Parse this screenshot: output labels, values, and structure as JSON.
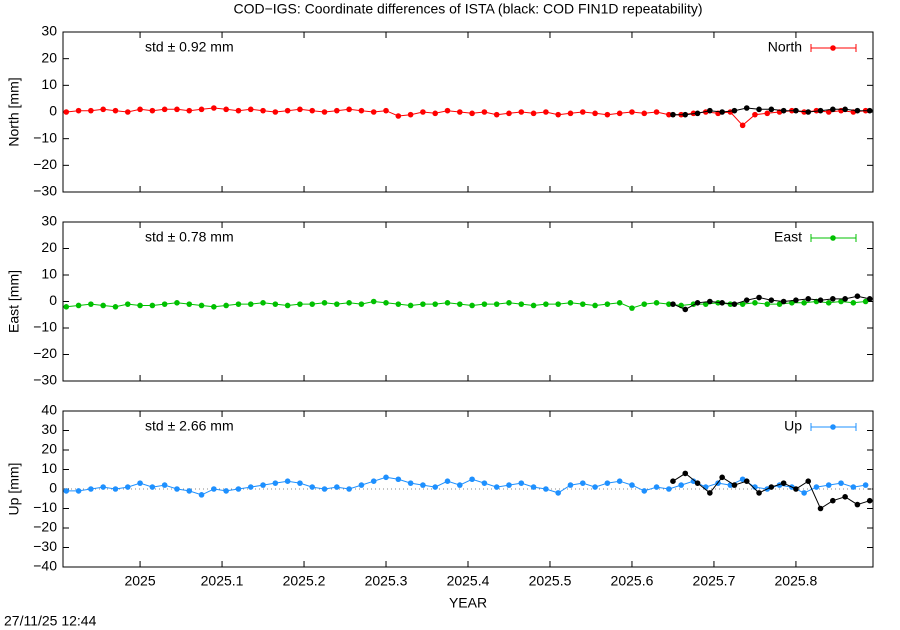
{
  "title": "COD−IGS: Coordinate differences of ISTA (black: COD FIN1D repeatability)",
  "timestamp": "27/11/25 12:44",
  "chart_data": [
    {
      "type": "scatter",
      "ylabel": "North [mm]",
      "annotation": "std ± 0.92 mm",
      "xlim": [
        2024.906,
        2025.894
      ],
      "xticks": [
        2025,
        2025.1,
        2025.2,
        2025.3,
        2025.4,
        2025.5,
        2025.6,
        2025.7,
        2025.8
      ],
      "show_xtick_labels": false,
      "ylim": [
        -30,
        30
      ],
      "yticks": [
        {
          "value": -30,
          "label": "−30"
        },
        {
          "value": -20,
          "label": "−20"
        },
        {
          "value": -10,
          "label": "−10"
        },
        0,
        10,
        20,
        30
      ],
      "zero_line": false,
      "legend": "upper right",
      "series": [
        {
          "name": "North",
          "color": "#ff0000",
          "x": [
            2024.91,
            2024.925,
            2024.94,
            2024.955,
            2024.97,
            2024.985,
            2025.0,
            2025.015,
            2025.03,
            2025.045,
            2025.06,
            2025.075,
            2025.09,
            2025.105,
            2025.12,
            2025.135,
            2025.15,
            2025.165,
            2025.18,
            2025.195,
            2025.21,
            2025.225,
            2025.24,
            2025.255,
            2025.27,
            2025.285,
            2025.3,
            2025.315,
            2025.33,
            2025.345,
            2025.36,
            2025.375,
            2025.39,
            2025.405,
            2025.42,
            2025.435,
            2025.45,
            2025.465,
            2025.48,
            2025.495,
            2025.51,
            2025.525,
            2025.54,
            2025.555,
            2025.57,
            2025.585,
            2025.6,
            2025.615,
            2025.63,
            2025.645,
            2025.66,
            2025.675,
            2025.69,
            2025.705,
            2025.72,
            2025.735,
            2025.75,
            2025.765,
            2025.78,
            2025.795,
            2025.81,
            2025.825,
            2025.84,
            2025.855,
            2025.87,
            2025.885
          ],
          "values": [
            0,
            0.5,
            0.5,
            1,
            0.5,
            0,
            1,
            0.5,
            1,
            1,
            0.5,
            1,
            1.5,
            1,
            0.5,
            1,
            0.5,
            0,
            0.5,
            1,
            0.5,
            0,
            0.5,
            1,
            0.5,
            0,
            0.5,
            -1.5,
            -1,
            0,
            -0.5,
            0.5,
            0,
            -0.5,
            0,
            -1,
            -0.5,
            0,
            -0.5,
            0,
            -1,
            -0.5,
            0,
            -0.5,
            -1,
            -0.5,
            0,
            -0.5,
            0,
            -1,
            -1,
            -0.5,
            0,
            -0.5,
            0,
            -5,
            -1,
            -0.5,
            0,
            0.5,
            0,
            0.5,
            0,
            0.5,
            0,
            0.5
          ]
        },
        {
          "color": "#000000",
          "x": [
            2025.65,
            2025.665,
            2025.68,
            2025.695,
            2025.71,
            2025.725,
            2025.74,
            2025.755,
            2025.77,
            2025.785,
            2025.8,
            2025.815,
            2025.83,
            2025.845,
            2025.86,
            2025.875,
            2025.89
          ],
          "values": [
            -1,
            -1,
            -0.5,
            0.5,
            0,
            0.5,
            1.5,
            1,
            1,
            0.5,
            0.5,
            0,
            0.5,
            1,
            1,
            0.5,
            0.5
          ]
        }
      ]
    },
    {
      "type": "scatter",
      "ylabel": "East [mm]",
      "annotation": "std ± 0.78 mm",
      "xlim": [
        2024.906,
        2025.894
      ],
      "xticks": [
        2025,
        2025.1,
        2025.2,
        2025.3,
        2025.4,
        2025.5,
        2025.6,
        2025.7,
        2025.8
      ],
      "show_xtick_labels": false,
      "ylim": [
        -30,
        30
      ],
      "yticks": [
        {
          "value": -30,
          "label": "−30"
        },
        {
          "value": -20,
          "label": "−20"
        },
        {
          "value": -10,
          "label": "−10"
        },
        0,
        10,
        20,
        30
      ],
      "zero_line": false,
      "legend": "upper right",
      "series": [
        {
          "name": "East",
          "color": "#00c000",
          "x": [
            2024.91,
            2024.925,
            2024.94,
            2024.955,
            2024.97,
            2024.985,
            2025.0,
            2025.015,
            2025.03,
            2025.045,
            2025.06,
            2025.075,
            2025.09,
            2025.105,
            2025.12,
            2025.135,
            2025.15,
            2025.165,
            2025.18,
            2025.195,
            2025.21,
            2025.225,
            2025.24,
            2025.255,
            2025.27,
            2025.285,
            2025.3,
            2025.315,
            2025.33,
            2025.345,
            2025.36,
            2025.375,
            2025.39,
            2025.405,
            2025.42,
            2025.435,
            2025.45,
            2025.465,
            2025.48,
            2025.495,
            2025.51,
            2025.525,
            2025.54,
            2025.555,
            2025.57,
            2025.585,
            2025.6,
            2025.615,
            2025.63,
            2025.645,
            2025.66,
            2025.675,
            2025.69,
            2025.705,
            2025.72,
            2025.735,
            2025.75,
            2025.765,
            2025.78,
            2025.795,
            2025.81,
            2025.825,
            2025.84,
            2025.855,
            2025.87,
            2025.885
          ],
          "values": [
            -2,
            -1.5,
            -1,
            -1.5,
            -2,
            -1,
            -1.5,
            -1.5,
            -1,
            -0.5,
            -1,
            -1.5,
            -2,
            -1.5,
            -1,
            -1,
            -0.5,
            -1,
            -1.5,
            -1,
            -1,
            -0.5,
            -1,
            -0.5,
            -1,
            0,
            -0.5,
            -1,
            -1.5,
            -1,
            -1,
            -0.5,
            -1,
            -1.5,
            -1,
            -1,
            -0.5,
            -1,
            -1.5,
            -1,
            -1,
            -0.5,
            -1,
            -1.5,
            -1,
            -0.5,
            -2.5,
            -1,
            -0.5,
            -1,
            -1.5,
            -1,
            -1,
            -0.5,
            -1,
            -1,
            -0.5,
            -1,
            -1,
            -0.5,
            -0.5,
            0,
            -0.5,
            0,
            -0.5,
            0
          ]
        },
        {
          "color": "#000000",
          "x": [
            2025.65,
            2025.665,
            2025.68,
            2025.695,
            2025.71,
            2025.725,
            2025.74,
            2025.755,
            2025.77,
            2025.785,
            2025.8,
            2025.815,
            2025.83,
            2025.845,
            2025.86,
            2025.875,
            2025.89
          ],
          "values": [
            -1,
            -3,
            -0.5,
            0,
            -0.5,
            -1,
            0.5,
            1.5,
            0.5,
            0,
            0.5,
            1,
            0.5,
            1,
            1,
            2,
            1
          ]
        }
      ]
    },
    {
      "type": "scatter",
      "ylabel": "Up [mm]",
      "annotation": "std ± 2.66 mm",
      "xlabel": "YEAR",
      "xlim": [
        2024.906,
        2025.894
      ],
      "xticks": [
        2025,
        2025.1,
        2025.2,
        2025.3,
        2025.4,
        2025.5,
        2025.6,
        2025.7,
        2025.8
      ],
      "show_xtick_labels": true,
      "ylim": [
        -40,
        40
      ],
      "yticks": [
        {
          "value": -40,
          "label": "−40"
        },
        {
          "value": -30,
          "label": "−30"
        },
        {
          "value": -20,
          "label": "−20"
        },
        {
          "value": -10,
          "label": "−10"
        },
        0,
        10,
        20,
        30,
        40
      ],
      "zero_line": true,
      "legend": "upper right",
      "series": [
        {
          "name": "Up",
          "color": "#1e90ff",
          "x": [
            2024.91,
            2024.925,
            2024.94,
            2024.955,
            2024.97,
            2024.985,
            2025.0,
            2025.015,
            2025.03,
            2025.045,
            2025.06,
            2025.075,
            2025.09,
            2025.105,
            2025.12,
            2025.135,
            2025.15,
            2025.165,
            2025.18,
            2025.195,
            2025.21,
            2025.225,
            2025.24,
            2025.255,
            2025.27,
            2025.285,
            2025.3,
            2025.315,
            2025.33,
            2025.345,
            2025.36,
            2025.375,
            2025.39,
            2025.405,
            2025.42,
            2025.435,
            2025.45,
            2025.465,
            2025.48,
            2025.495,
            2025.51,
            2025.525,
            2025.54,
            2025.555,
            2025.57,
            2025.585,
            2025.6,
            2025.615,
            2025.63,
            2025.645,
            2025.66,
            2025.675,
            2025.69,
            2025.705,
            2025.72,
            2025.735,
            2025.75,
            2025.765,
            2025.78,
            2025.795,
            2025.81,
            2025.825,
            2025.84,
            2025.855,
            2025.87,
            2025.885
          ],
          "values": [
            -1,
            -1,
            0,
            1,
            0,
            1,
            3,
            1,
            2,
            0,
            -1,
            -3,
            0,
            -1,
            0,
            1,
            2,
            3,
            4,
            3,
            1,
            0,
            1,
            0,
            2,
            4,
            6,
            5,
            3,
            2,
            1,
            4,
            2,
            5,
            3,
            1,
            2,
            3,
            1,
            0,
            -2,
            2,
            3,
            1,
            3,
            4,
            2,
            -1,
            1,
            0,
            2,
            4,
            1,
            3,
            2,
            5,
            1,
            0,
            2,
            1,
            -2,
            1,
            2,
            3,
            1,
            2
          ]
        },
        {
          "color": "#000000",
          "x": [
            2025.65,
            2025.665,
            2025.68,
            2025.695,
            2025.71,
            2025.725,
            2025.74,
            2025.755,
            2025.77,
            2025.785,
            2025.8,
            2025.815,
            2025.83,
            2025.845,
            2025.86,
            2025.875,
            2025.89
          ],
          "values": [
            4,
            8,
            3,
            -2,
            6,
            2,
            4,
            -2,
            1,
            3,
            0,
            4,
            -10,
            -6,
            -4,
            -8,
            -6
          ]
        }
      ]
    }
  ]
}
